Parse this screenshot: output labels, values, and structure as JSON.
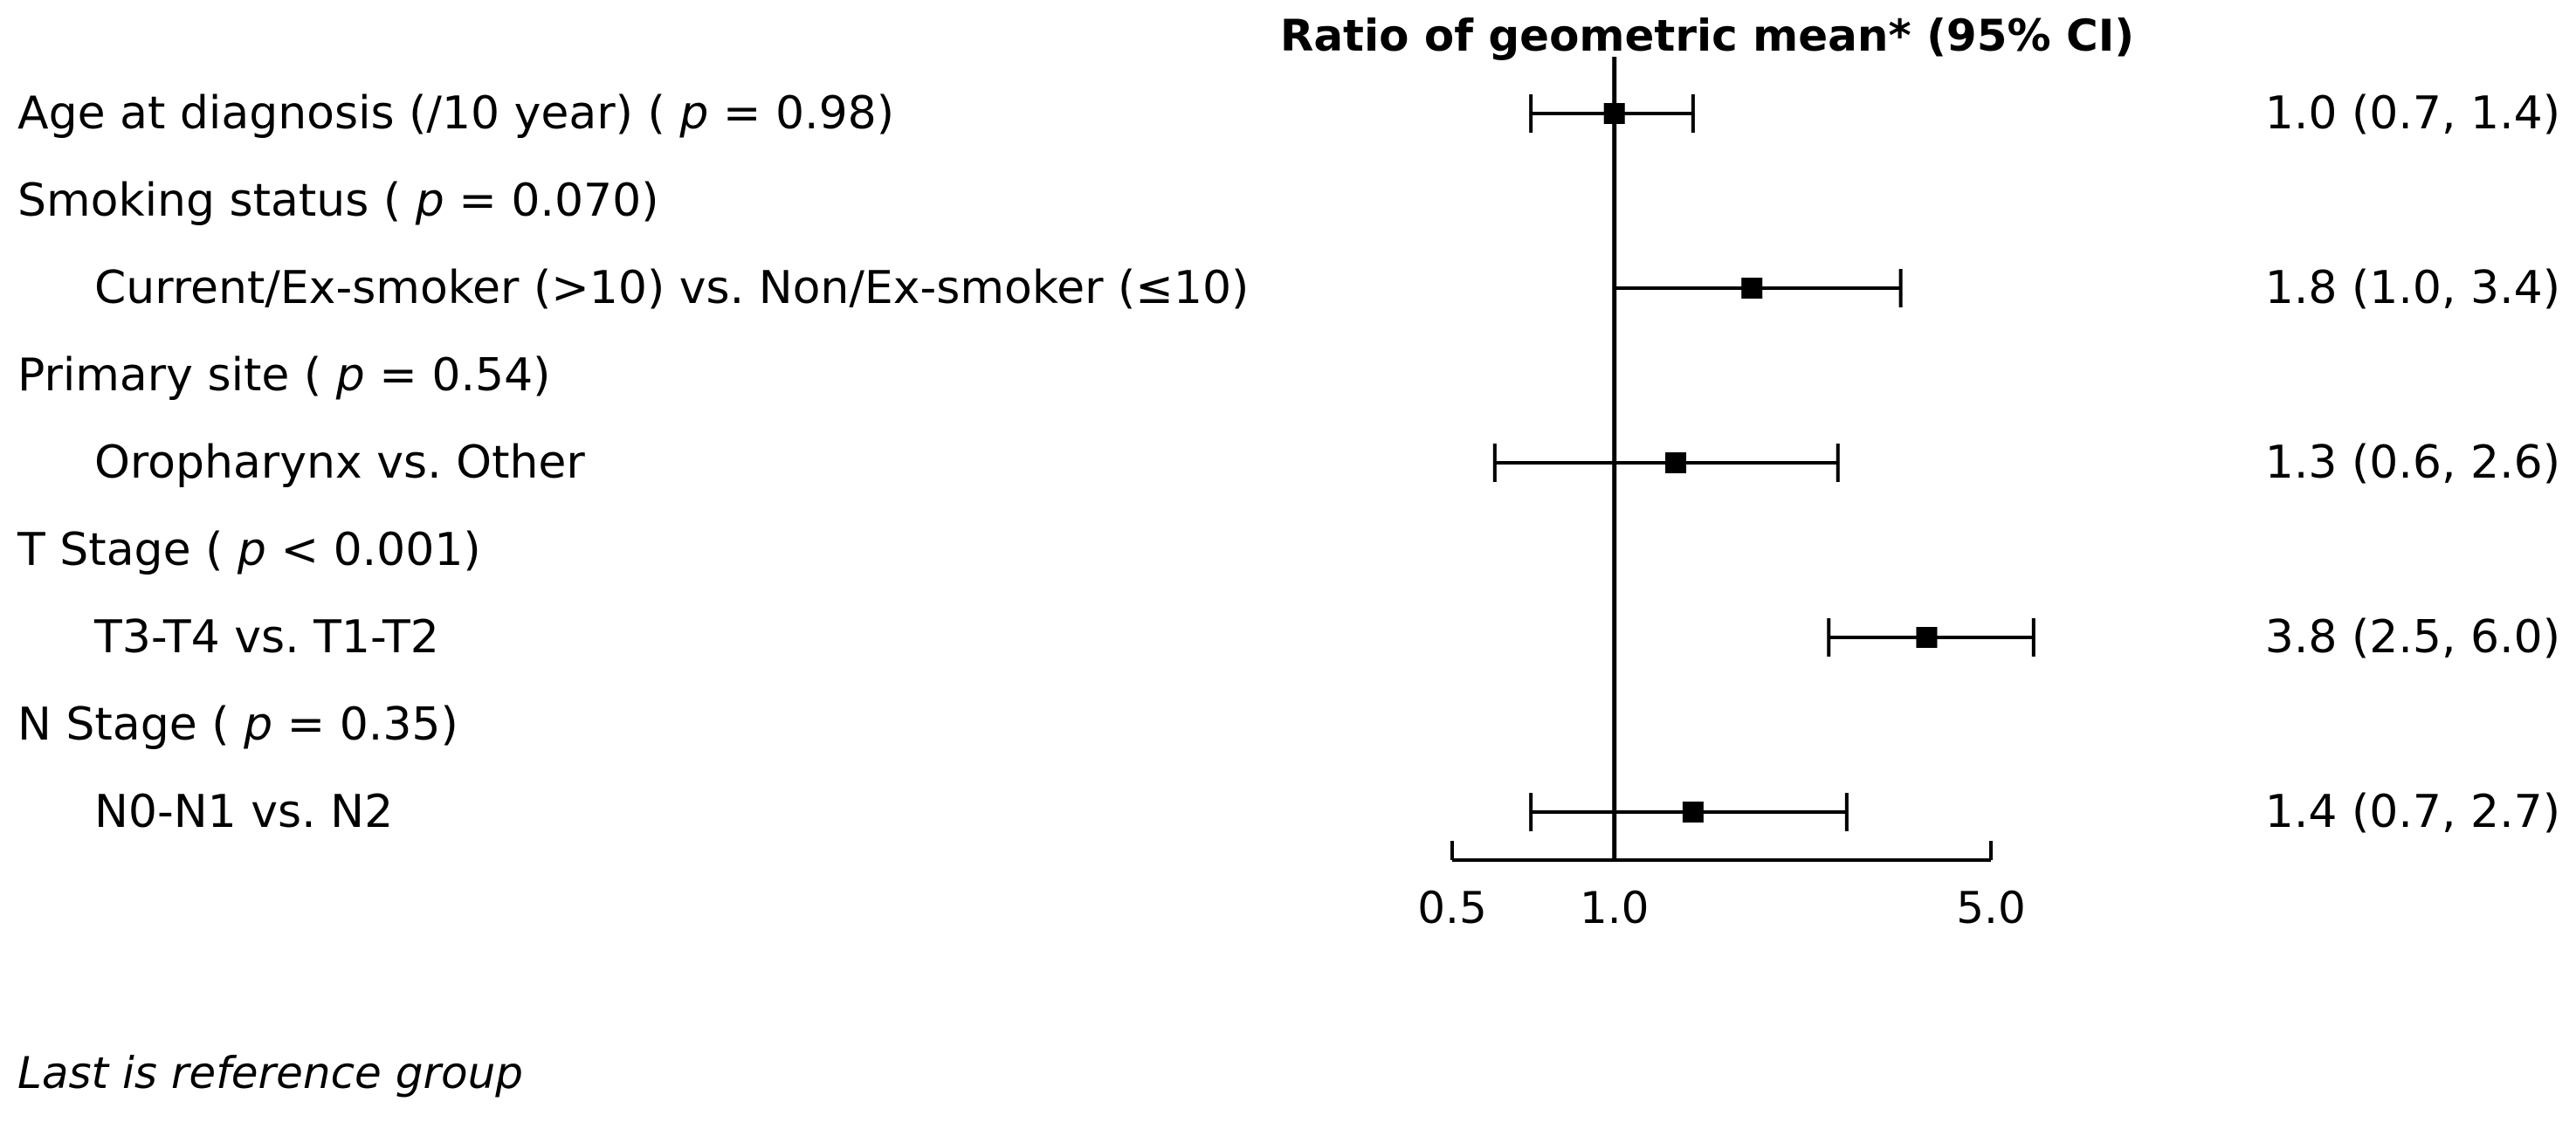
{
  "chart_data": {
    "type": "forest",
    "title": "Ratio of geometric mean* (95% CI)",
    "x_scale": "log",
    "xlim": [
      0.5,
      5.0
    ],
    "reference_line": 1.0,
    "x_ticks": [
      {
        "value": 0.5,
        "label": "0.5"
      },
      {
        "value": 1.0,
        "label": "1.0"
      },
      {
        "value": 5.0,
        "label": "5.0"
      }
    ],
    "rows": [
      {
        "label": "Age at diagnosis (/10 year)",
        "p_label": "p",
        "p_rest": " = 0.98)",
        "indent": false,
        "estimate": 1.0,
        "lower": 0.7,
        "upper": 1.4,
        "estimate_text": "1.0 (0.7, 1.4)"
      },
      {
        "label": "Smoking status",
        "p_label": "p",
        "p_rest": " = 0.070)",
        "indent": false
      },
      {
        "label": "Current/Ex-smoker (>10) vs. Non/Ex-smoker (≤10)",
        "p_label": "",
        "p_rest": "",
        "indent": true,
        "estimate": 1.8,
        "lower": 1.0,
        "upper": 3.4,
        "estimate_text": "1.8 (1.0, 3.4)"
      },
      {
        "label": "Primary site",
        "p_label": "p",
        "p_rest": " = 0.54)",
        "indent": false
      },
      {
        "label": "Oropharynx vs. Other",
        "p_label": "",
        "p_rest": "",
        "indent": true,
        "estimate": 1.3,
        "lower": 0.6,
        "upper": 2.6,
        "estimate_text": "1.3 (0.6, 2.6)"
      },
      {
        "label": "T Stage",
        "p_label": "p",
        "p_rest": " < 0.001)",
        "indent": false
      },
      {
        "label": "T3-T4 vs. T1-T2",
        "p_label": "",
        "p_rest": "",
        "indent": true,
        "estimate": 3.8,
        "lower": 2.5,
        "upper": 6.0,
        "estimate_text": "3.8 (2.5, 6.0)"
      },
      {
        "label": "N Stage",
        "p_label": "p",
        "p_rest": " = 0.35)",
        "indent": false
      },
      {
        "label": "N0-N1 vs. N2",
        "p_label": "",
        "p_rest": "",
        "indent": true,
        "estimate": 1.4,
        "lower": 0.7,
        "upper": 2.7,
        "estimate_text": "1.4 (0.7, 2.7)"
      }
    ],
    "footnote": "Last is reference group"
  }
}
